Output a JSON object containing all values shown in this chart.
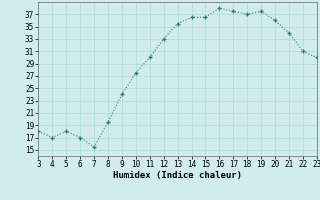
{
  "x": [
    3,
    4,
    5,
    6,
    7,
    8,
    9,
    10,
    11,
    12,
    13,
    14,
    15,
    16,
    17,
    18,
    19,
    20,
    21,
    22,
    23
  ],
  "y": [
    18,
    17,
    18,
    17,
    15.5,
    19.5,
    24,
    27.5,
    30,
    33,
    35.5,
    36.5,
    36.5,
    38,
    37.5,
    37,
    37.5,
    36,
    34,
    31,
    30
  ],
  "line_color": "#2d7f7f",
  "marker_color": "#2d7f7f",
  "bg_color": "#d0ecec",
  "grid_color": "#b0d8d8",
  "xlabel": "Humidex (Indice chaleur)",
  "xlim": [
    3,
    23
  ],
  "ylim": [
    14,
    39
  ],
  "yticks": [
    15,
    17,
    19,
    21,
    23,
    25,
    27,
    29,
    31,
    33,
    35,
    37
  ],
  "xticks": [
    3,
    4,
    5,
    6,
    7,
    8,
    9,
    10,
    11,
    12,
    13,
    14,
    15,
    16,
    17,
    18,
    19,
    20,
    21,
    22,
    23
  ],
  "axis_fontsize": 5.5,
  "label_fontsize": 6.5,
  "line_width": 0.8,
  "marker_size": 3.0
}
